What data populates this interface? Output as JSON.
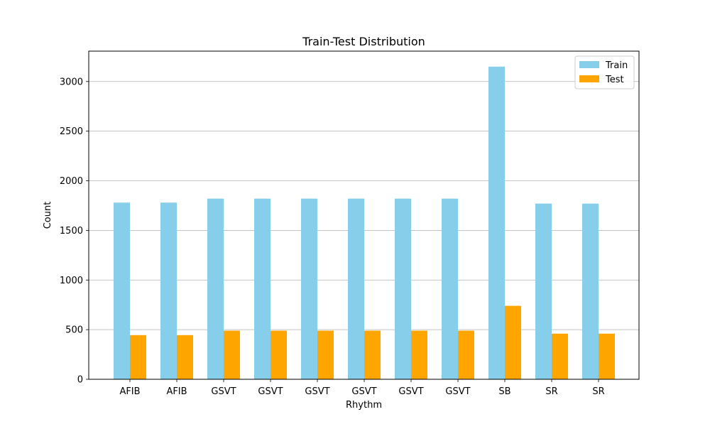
{
  "chart_data": {
    "type": "bar",
    "title": "Train-Test Distribution",
    "xlabel": "Rhythm",
    "ylabel": "Count",
    "categories": [
      "AFIB",
      "AFIB",
      "GSVT",
      "GSVT",
      "GSVT",
      "GSVT",
      "GSVT",
      "GSVT",
      "SB",
      "SR",
      "SR"
    ],
    "series": [
      {
        "name": "Train",
        "color": "#87CEEB",
        "values": [
          1780,
          1780,
          1820,
          1820,
          1820,
          1820,
          1820,
          1820,
          3150,
          1770,
          1770
        ]
      },
      {
        "name": "Test",
        "color": "#FFA500",
        "values": [
          445,
          445,
          490,
          490,
          490,
          490,
          490,
          490,
          740,
          460,
          460
        ]
      }
    ],
    "ylim": [
      0,
      3306
    ],
    "yticks": [
      0,
      500,
      1000,
      1500,
      2000,
      2500,
      3000
    ],
    "grid": "y",
    "legend_position": "top-right"
  }
}
